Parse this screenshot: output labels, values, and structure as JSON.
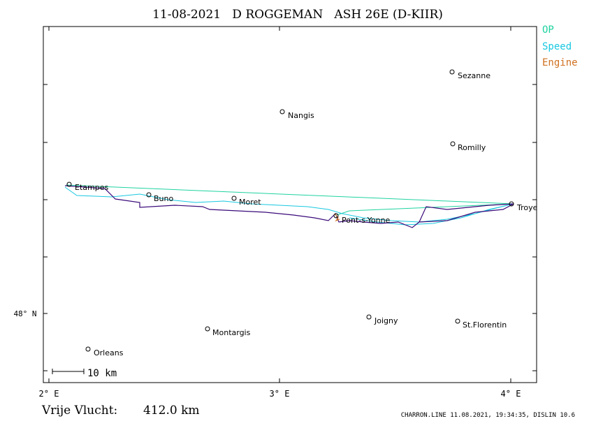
{
  "title": "11-08-2021   D ROGGEMAN   ASH 26E (D-KIIR)",
  "legend": [
    "OP",
    "Speed",
    "Engine"
  ],
  "towns": [
    "Sezanne",
    "Nangis",
    "Romilly",
    "Etampes",
    "Buno",
    "Moret",
    "Troyes",
    "Pont-s-Yonne",
    "Joigny",
    "St.Florentin",
    "Montargis",
    "Orleans"
  ],
  "axes": {
    "x": [
      "2° E",
      "3° E",
      "4° E"
    ],
    "y": [
      "48° N"
    ]
  },
  "scale": "10 km",
  "footer": {
    "distance_label": "Vrije Vlucht:",
    "distance": "412.0 km",
    "credit": "CHARRON.LINE 11.08.2021, 19:34:35, DISLIN 10.6"
  }
}
